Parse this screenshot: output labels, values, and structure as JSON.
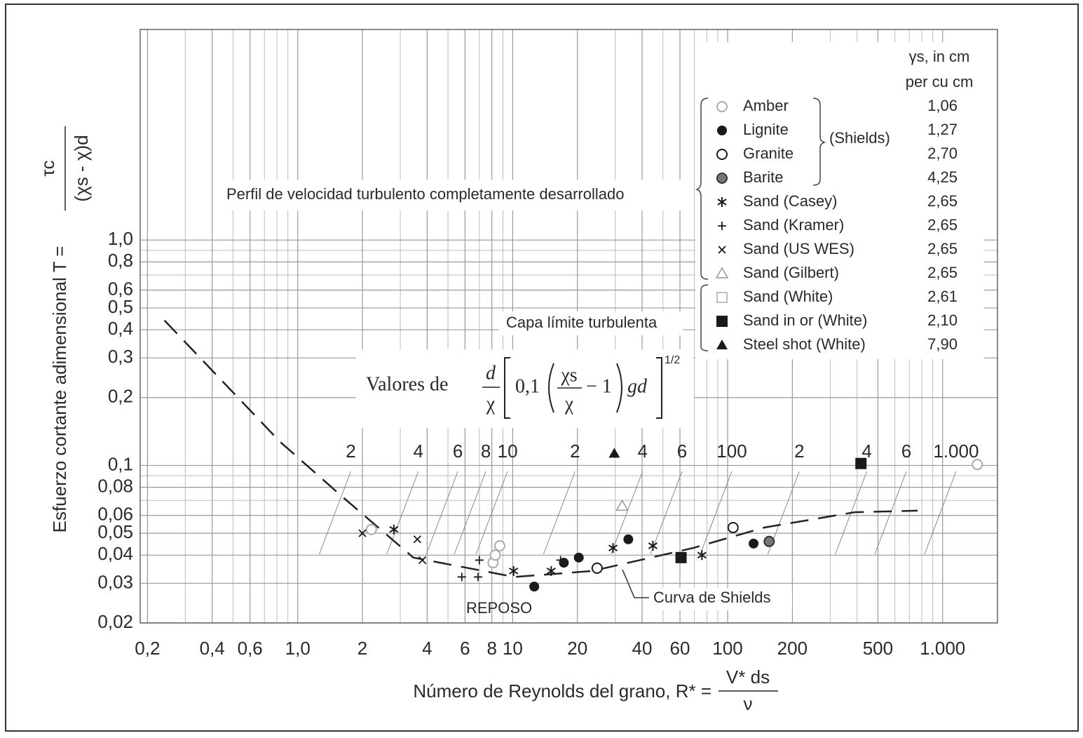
{
  "chart_data": {
    "type": "scatter",
    "xlabel": {
      "text": "Número de Reynolds del grano, R* =",
      "num": "V* ds",
      "den": "ν"
    },
    "ylabel": {
      "text": "Esfuerzo cortante adimensional T =",
      "num": "τc",
      "den": "(χs - χ)d"
    },
    "log_x": true,
    "log_y": true,
    "grid": true,
    "xlim": [
      0.185,
      1800
    ],
    "ylim": [
      0.02,
      8.6
    ],
    "xticks": [
      {
        "value": 0.2,
        "label": "0,2"
      },
      {
        "value": 0.4,
        "label": "0,4"
      },
      {
        "value": 0.6,
        "label": "0,6"
      },
      {
        "value": 1,
        "label": "1,0"
      },
      2,
      4,
      6,
      8,
      10,
      20,
      40,
      60,
      100,
      200,
      500,
      {
        "value": 1000,
        "label": "1.000"
      }
    ],
    "yticks": [
      {
        "value": 0.02,
        "label": "0,02"
      },
      {
        "value": 0.03,
        "label": "0,03"
      },
      {
        "value": 0.04,
        "label": "0,04"
      },
      {
        "value": 0.05,
        "label": "0,05"
      },
      {
        "value": 0.06,
        "label": "0,06"
      },
      {
        "value": 0.08,
        "label": "0,08"
      },
      {
        "value": 0.1,
        "label": "0,1"
      },
      {
        "value": 0.2,
        "label": "0,2"
      },
      {
        "value": 0.3,
        "label": "0,3"
      },
      {
        "value": 0.4,
        "label": "0,4"
      },
      {
        "value": 0.5,
        "label": "0,5"
      },
      {
        "value": 0.6,
        "label": "0,6"
      },
      {
        "value": 0.8,
        "label": "0,8"
      },
      {
        "value": 1,
        "label": "1,0"
      }
    ],
    "x_minor_grid": [
      0.3,
      0.5,
      0.7,
      0.8,
      0.9,
      3,
      5,
      7,
      9,
      30,
      50,
      70,
      80,
      90,
      300,
      400,
      600,
      700,
      800,
      900
    ],
    "y_minor_grid": [
      0.07,
      0.09,
      0.7,
      0.9
    ],
    "top_scale": {
      "label": "Valores de",
      "formula": {
        "frac_num": "d",
        "frac_den": "χ",
        "coef": "0,1",
        "inner_num": "χs",
        "inner_den": "χ",
        "minus_one": "− 1",
        "tail": "gd",
        "exponent": "1/2"
      },
      "xlim": [
        0.23,
        1530
      ],
      "ticks": [
        2,
        4,
        6,
        8,
        10,
        {
          "value": 20,
          "label": "2"
        },
        {
          "value": 40,
          "label": "4"
        },
        {
          "value": 60,
          "label": "6"
        },
        100,
        {
          "value": 200,
          "label": "2"
        },
        {
          "value": 400,
          "label": "4"
        },
        {
          "value": 600,
          "label": "6"
        },
        {
          "value": 1000,
          "label": "1.000"
        }
      ]
    },
    "annotations": [
      "Perfil de velocidad turbulento completamente desarrollado",
      "Capa límite turbulenta",
      "REPOSO"
    ],
    "curve": {
      "label": "Curva de Shields",
      "color": "#222222",
      "x": [
        0.24,
        0.83,
        1.63,
        3.45,
        10.2,
        23.4,
        69,
        148,
        390,
        766
      ],
      "values": [
        0.44,
        0.127,
        0.072,
        0.039,
        0.032,
        0.034,
        0.043,
        0.053,
        0.062,
        0.063
      ]
    },
    "legend": {
      "header": "γs, in cm",
      "header2": "per cu cm",
      "group": "(Shields)"
    },
    "series": [
      {
        "name": "Amber",
        "marker": "circle-open",
        "color": "#aaaaaa",
        "density": "1,06",
        "x": [
          2.2,
          8.1,
          8.3,
          8.7,
          1450
        ],
        "values": [
          0.052,
          0.037,
          0.04,
          0.044,
          0.101
        ]
      },
      {
        "name": "Lignite",
        "marker": "circle-filled",
        "color": "#1a1a1a",
        "density": "1,27",
        "x": [
          12.6,
          17.3,
          20.3,
          34.5,
          132
        ],
        "values": [
          0.029,
          0.037,
          0.039,
          0.047,
          0.045
        ]
      },
      {
        "name": "Granite",
        "marker": "circle-open",
        "color": "#1a1a1a",
        "density": "2,70",
        "x": [
          24.7,
          106
        ],
        "values": [
          0.035,
          0.053
        ]
      },
      {
        "name": "Barite",
        "marker": "circle-gray",
        "color": "#777777",
        "density": "4,25",
        "x": [
          156
        ],
        "values": [
          0.046
        ]
      },
      {
        "name": "Sand (Casey)",
        "marker": "asterisk",
        "color": "#1a1a1a",
        "density": "2,65",
        "x": [
          2.8,
          10.1,
          15.1,
          29.3,
          44.9,
          75.9
        ],
        "values": [
          0.052,
          0.034,
          0.034,
          0.043,
          0.044,
          0.04
        ]
      },
      {
        "name": "Sand (Kramer)",
        "marker": "plus",
        "color": "#1a1a1a",
        "density": "2,65",
        "x": [
          5.8,
          6.9,
          7.0,
          16.7
        ],
        "values": [
          0.032,
          0.032,
          0.038,
          0.038
        ]
      },
      {
        "name": "Sand (US WES)",
        "marker": "x",
        "color": "#1a1a1a",
        "density": "2,65",
        "x": [
          2.0,
          3.6,
          3.8
        ],
        "values": [
          0.05,
          0.047,
          0.038
        ]
      },
      {
        "name": "Sand (Gilbert)",
        "marker": "triangle-open",
        "color": "#999999",
        "density": "2,65",
        "x": [
          32.3
        ],
        "values": [
          0.066
        ]
      },
      {
        "name": "Sand (White)",
        "marker": "square-open",
        "color": "#aaaaaa",
        "density": "2,61",
        "x": [],
        "values": []
      },
      {
        "name": "Sand in or (White)",
        "marker": "square-filled",
        "color": "#1a1a1a",
        "density": "2,10",
        "x": [
          60.7,
          417
        ],
        "values": [
          0.039,
          0.102
        ]
      },
      {
        "name": "Steel shot (White)",
        "marker": "triangle-filled",
        "color": "#1a1a1a",
        "density": "7,90",
        "x": [
          29.7
        ],
        "values": [
          0.113
        ]
      }
    ]
  }
}
